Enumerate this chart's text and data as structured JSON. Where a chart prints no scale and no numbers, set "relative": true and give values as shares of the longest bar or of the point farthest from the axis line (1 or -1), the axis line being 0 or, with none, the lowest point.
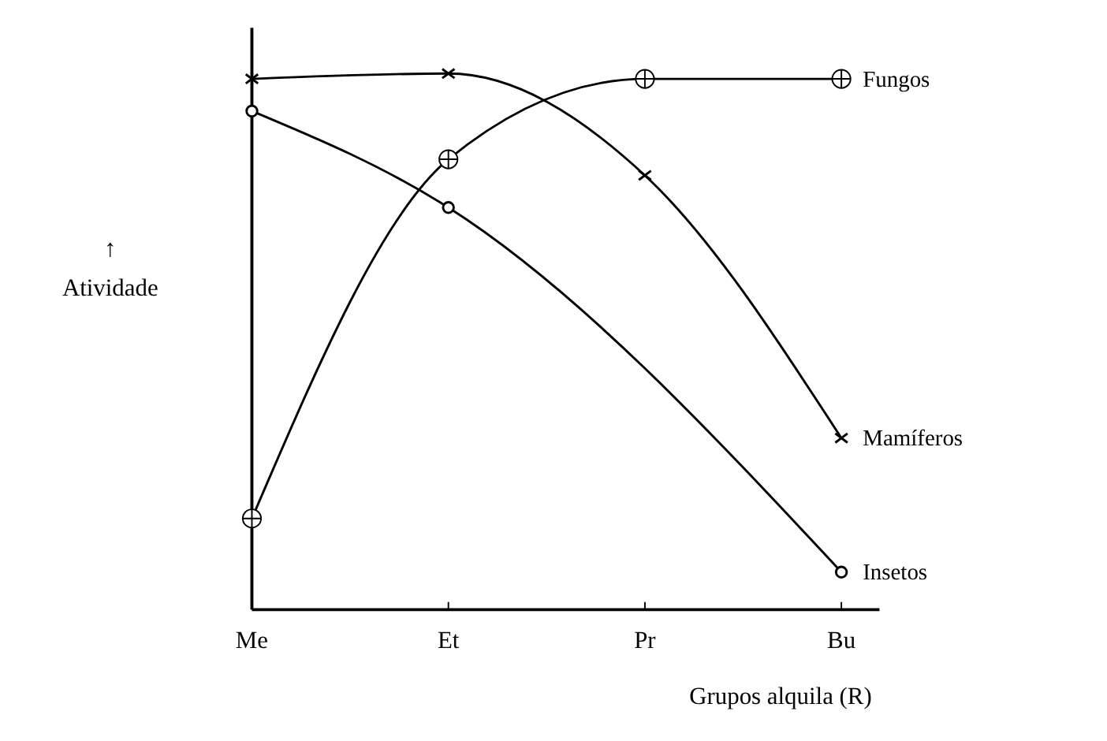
{
  "chart_data": {
    "type": "line",
    "relative": true,
    "xlabel": "Grupos alquila (R)",
    "ylabel": "↑\nAtividade",
    "categories": [
      "Me",
      "Et",
      "Pr",
      "Bu"
    ],
    "legend": false,
    "series": [
      {
        "name": "Fungos",
        "color": "#000000",
        "marker": "circle-plus",
        "values": [
          0.17,
          0.84,
          0.99,
          0.99
        ]
      },
      {
        "name": "Mamíferos",
        "color": "#000000",
        "marker": "cross",
        "values": [
          0.99,
          1,
          0.81,
          0.32
        ]
      },
      {
        "name": "Insetos",
        "color": "#000000",
        "marker": "circle",
        "values": [
          0.93,
          0.75,
          null,
          0.07
        ]
      }
    ]
  }
}
